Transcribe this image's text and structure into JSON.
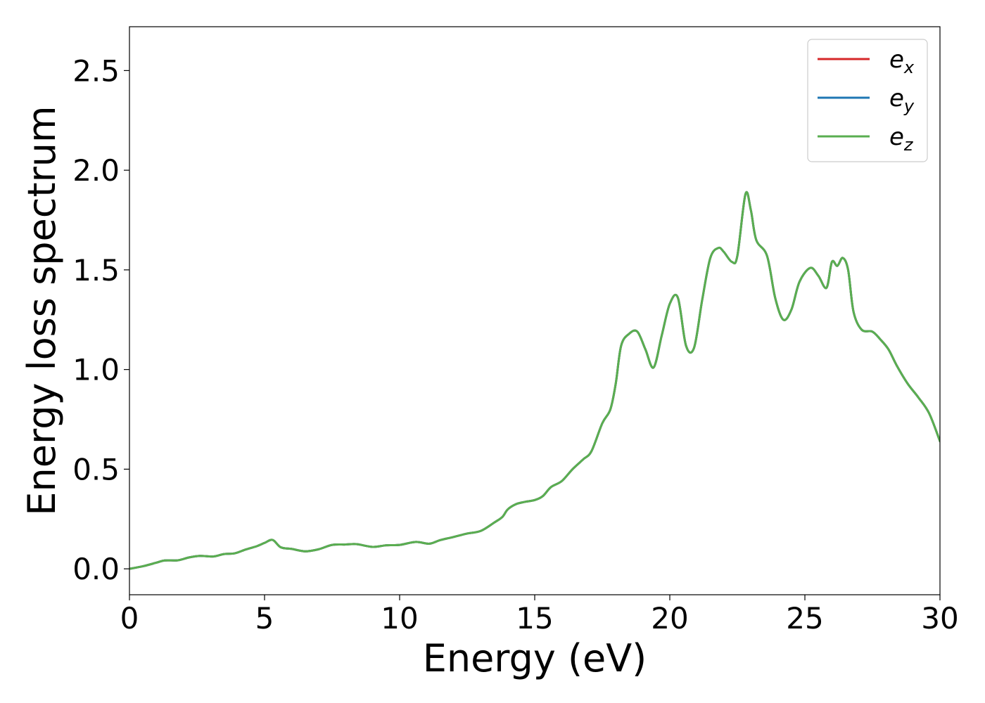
{
  "chart_data": {
    "type": "line",
    "title": "",
    "xlabel": "Energy (eV)",
    "ylabel": "Energy loss spectrum",
    "xlim": [
      0,
      30
    ],
    "ylim": [
      -0.13,
      2.72
    ],
    "xticks": [
      0,
      5,
      10,
      15,
      20,
      25,
      30
    ],
    "xtick_labels": [
      "0",
      "5",
      "10",
      "15",
      "20",
      "25",
      "30"
    ],
    "yticks": [
      0.0,
      0.5,
      1.0,
      1.5,
      2.0,
      2.5
    ],
    "ytick_labels": [
      "0.0",
      "0.5",
      "1.0",
      "1.5",
      "2.0",
      "2.5"
    ],
    "grid": false,
    "legend_position": "top-right",
    "x": [
      0.0,
      0.5,
      1.0,
      1.3,
      1.8,
      2.2,
      2.6,
      3.1,
      3.5,
      3.9,
      4.3,
      4.7,
      5.0,
      5.3,
      5.6,
      6.0,
      6.5,
      7.0,
      7.5,
      8.0,
      8.4,
      9.0,
      9.5,
      10.0,
      10.6,
      11.1,
      11.5,
      12.0,
      12.5,
      13.0,
      13.5,
      13.8,
      14.0,
      14.3,
      14.6,
      15.0,
      15.3,
      15.6,
      16.0,
      16.4,
      16.8,
      17.1,
      17.5,
      17.8,
      18.0,
      18.2,
      18.5,
      18.8,
      19.1,
      19.4,
      19.7,
      20.0,
      20.3,
      20.6,
      20.9,
      21.2,
      21.5,
      21.8,
      22.0,
      22.3,
      22.5,
      22.8,
      23.0,
      23.2,
      23.6,
      23.9,
      24.2,
      24.5,
      24.8,
      25.2,
      25.5,
      25.8,
      26.0,
      26.2,
      26.4,
      26.6,
      26.8,
      27.1,
      27.5,
      27.8,
      28.1,
      28.4,
      28.8,
      29.2,
      29.6,
      30.0
    ],
    "series": [
      {
        "name": "e_x",
        "color": "#d62728",
        "values": [
          0.0,
          0.013,
          0.031,
          0.042,
          0.043,
          0.057,
          0.065,
          0.062,
          0.074,
          0.078,
          0.097,
          0.113,
          0.13,
          0.145,
          0.108,
          0.1,
          0.088,
          0.098,
          0.12,
          0.122,
          0.124,
          0.11,
          0.118,
          0.12,
          0.135,
          0.126,
          0.144,
          0.16,
          0.177,
          0.19,
          0.232,
          0.26,
          0.298,
          0.324,
          0.335,
          0.345,
          0.365,
          0.41,
          0.44,
          0.5,
          0.55,
          0.59,
          0.73,
          0.8,
          0.93,
          1.12,
          1.18,
          1.19,
          1.1,
          1.01,
          1.17,
          1.33,
          1.36,
          1.12,
          1.11,
          1.35,
          1.56,
          1.61,
          1.59,
          1.54,
          1.57,
          1.88,
          1.8,
          1.65,
          1.57,
          1.36,
          1.25,
          1.3,
          1.44,
          1.51,
          1.47,
          1.41,
          1.54,
          1.52,
          1.56,
          1.5,
          1.29,
          1.2,
          1.19,
          1.15,
          1.1,
          1.02,
          0.93,
          0.86,
          0.78,
          0.64
        ]
      },
      {
        "name": "e_y",
        "color": "#1f77b4",
        "values": [
          0.0,
          0.013,
          0.031,
          0.042,
          0.043,
          0.057,
          0.065,
          0.062,
          0.074,
          0.078,
          0.097,
          0.113,
          0.13,
          0.145,
          0.108,
          0.1,
          0.088,
          0.098,
          0.12,
          0.122,
          0.124,
          0.11,
          0.118,
          0.12,
          0.135,
          0.126,
          0.144,
          0.16,
          0.177,
          0.19,
          0.232,
          0.26,
          0.298,
          0.324,
          0.335,
          0.345,
          0.365,
          0.41,
          0.44,
          0.5,
          0.55,
          0.59,
          0.73,
          0.8,
          0.93,
          1.12,
          1.18,
          1.19,
          1.1,
          1.01,
          1.17,
          1.33,
          1.36,
          1.12,
          1.11,
          1.35,
          1.56,
          1.61,
          1.59,
          1.54,
          1.57,
          1.88,
          1.8,
          1.65,
          1.57,
          1.36,
          1.25,
          1.3,
          1.44,
          1.51,
          1.47,
          1.41,
          1.54,
          1.52,
          1.56,
          1.5,
          1.29,
          1.2,
          1.19,
          1.15,
          1.1,
          1.02,
          0.93,
          0.86,
          0.78,
          0.64
        ]
      },
      {
        "name": "e_z",
        "color": "#5aae50",
        "values": [
          0.0,
          0.013,
          0.031,
          0.042,
          0.043,
          0.057,
          0.065,
          0.062,
          0.074,
          0.078,
          0.097,
          0.113,
          0.13,
          0.145,
          0.108,
          0.1,
          0.088,
          0.098,
          0.12,
          0.122,
          0.124,
          0.11,
          0.118,
          0.12,
          0.135,
          0.126,
          0.144,
          0.16,
          0.177,
          0.19,
          0.232,
          0.26,
          0.298,
          0.324,
          0.335,
          0.345,
          0.365,
          0.41,
          0.44,
          0.5,
          0.55,
          0.59,
          0.73,
          0.8,
          0.93,
          1.12,
          1.18,
          1.19,
          1.1,
          1.01,
          1.17,
          1.33,
          1.36,
          1.12,
          1.11,
          1.35,
          1.56,
          1.61,
          1.59,
          1.54,
          1.57,
          1.88,
          1.8,
          1.65,
          1.57,
          1.36,
          1.25,
          1.3,
          1.44,
          1.51,
          1.47,
          1.41,
          1.54,
          1.52,
          1.56,
          1.5,
          1.29,
          1.2,
          1.19,
          1.15,
          1.1,
          1.02,
          0.93,
          0.86,
          0.78,
          0.64
        ]
      }
    ],
    "legend": [
      {
        "base": "e",
        "sub": "x"
      },
      {
        "base": "e",
        "sub": "y"
      },
      {
        "base": "e",
        "sub": "z"
      }
    ]
  }
}
